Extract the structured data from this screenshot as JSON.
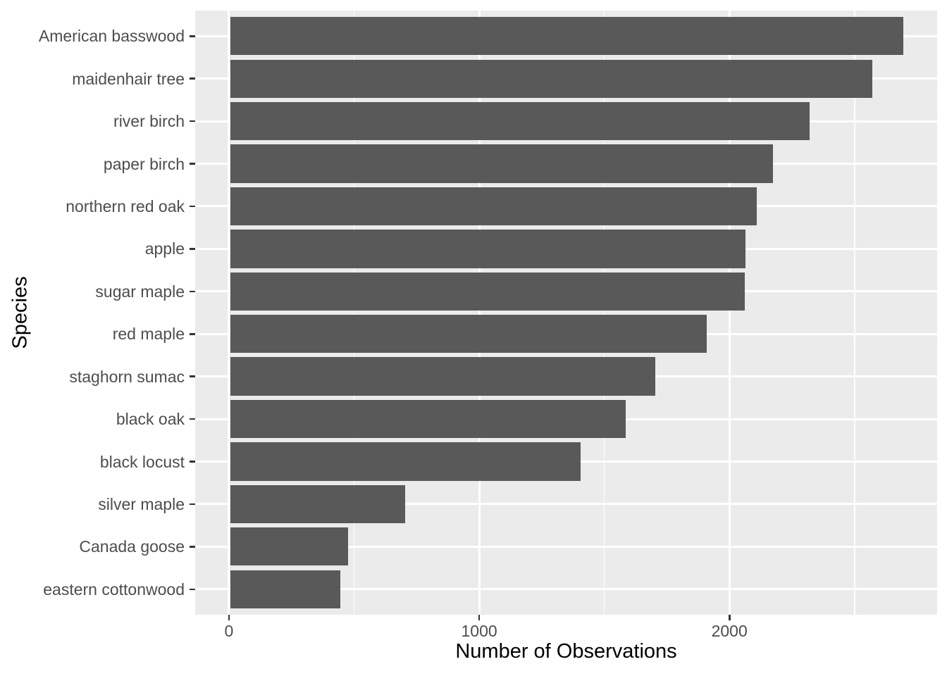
{
  "chart_data": {
    "type": "bar",
    "orientation": "horizontal",
    "title": "",
    "xlabel": "Number of Observations",
    "ylabel": "Species",
    "categories": [
      "American basswood",
      "maidenhair tree",
      "river birch",
      "paper birch",
      "northern red oak",
      "apple",
      "sugar maple",
      "red maple",
      "staghorn sumac",
      "black oak",
      "black locust",
      "silver maple",
      "Canada goose",
      "eastern cottonwood"
    ],
    "values": [
      2695,
      2570,
      2320,
      2175,
      2110,
      2065,
      2060,
      1910,
      1705,
      1585,
      1405,
      705,
      475,
      445
    ],
    "x_ticks": [
      0,
      1000,
      2000
    ],
    "x_tick_labels": [
      "0",
      "1000",
      "2000"
    ],
    "x_minor_ticks": [
      500,
      1500,
      2500
    ],
    "xlim": [
      -135,
      2830
    ],
    "bar_width_fraction": 0.9,
    "category_outer_padding": 0.6,
    "grid": true,
    "legend": false,
    "colors": {
      "bar_fill": "#595959",
      "panel_bg": "#EBEBEB",
      "grid_major": "#FFFFFF",
      "grid_minor": "#FFFFFF",
      "axis_text": "#4D4D4D",
      "axis_title": "#000000",
      "tick_mark": "#333333",
      "page_bg": "#FFFFFF"
    }
  }
}
